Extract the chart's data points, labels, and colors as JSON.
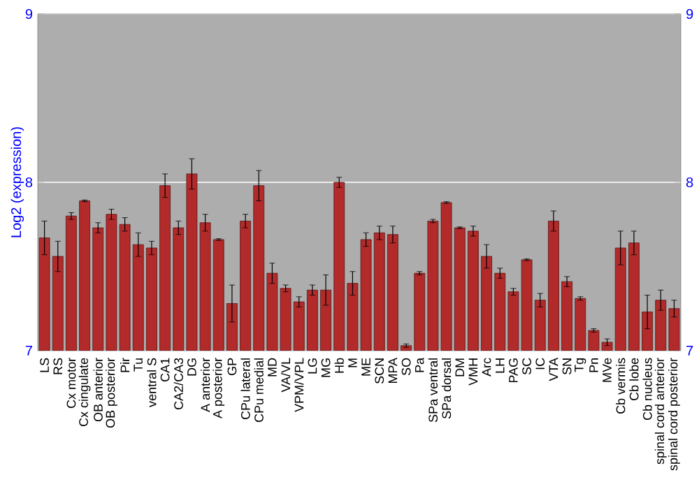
{
  "chart_data": {
    "type": "bar",
    "ylabel": "Log2 (expression)",
    "categories": [
      "LS",
      "RS",
      "Cx motor",
      "Cx cingulate",
      "OB anterior",
      "OB posterior",
      "Pir",
      "Tu",
      "ventral S",
      "CA1",
      "CA2/CA3",
      "DG",
      "A anterior",
      "A posterior",
      "GP",
      "CPu lateral",
      "CPu medial",
      "MD",
      "VA/VL",
      "VPM/VPL",
      "LG",
      "MG",
      "Hb",
      "M",
      "ME",
      "SCN",
      "MPA",
      "SO",
      "Pa",
      "SPa ventral",
      "SPa dorsal",
      "DM",
      "VMH",
      "Arc",
      "LH",
      "PAG",
      "SC",
      "IC",
      "VTA",
      "SN",
      "Tg",
      "Pn",
      "MVe",
      "Cb vermis",
      "Cb lobe",
      "Cb nucleus",
      "spinal cord anterior",
      "spinal cord posterior"
    ],
    "values": [
      7.67,
      7.56,
      7.8,
      7.89,
      7.73,
      7.81,
      7.75,
      7.63,
      7.61,
      7.98,
      7.73,
      8.05,
      7.76,
      7.66,
      7.28,
      7.77,
      7.98,
      7.46,
      7.37,
      7.29,
      7.36,
      7.36,
      8.0,
      7.4,
      7.66,
      7.7,
      7.69,
      7.03,
      7.46,
      7.77,
      7.88,
      7.73,
      7.71,
      7.56,
      7.46,
      7.35,
      7.54,
      7.3,
      7.77,
      7.41,
      7.31,
      7.12,
      7.05,
      7.61,
      7.64,
      7.23,
      7.3,
      7.25
    ],
    "errors": [
      0.1,
      0.09,
      0.02,
      0.005,
      0.03,
      0.03,
      0.04,
      0.07,
      0.04,
      0.07,
      0.04,
      0.09,
      0.05,
      0.005,
      0.11,
      0.04,
      0.09,
      0.06,
      0.02,
      0.03,
      0.03,
      0.09,
      0.03,
      0.07,
      0.04,
      0.04,
      0.05,
      0.01,
      0.01,
      0.01,
      0.005,
      0.005,
      0.03,
      0.07,
      0.03,
      0.02,
      0.005,
      0.04,
      0.06,
      0.03,
      0.01,
      0.01,
      0.02,
      0.1,
      0.07,
      0.1,
      0.06,
      0.05
    ],
    "color": "#b22a2a",
    "ylim": [
      7,
      9
    ],
    "yticks": [
      7,
      8,
      9
    ],
    "y2lim": [
      7,
      9
    ],
    "y2ticks": [
      7,
      8,
      9
    ],
    "grid": "y"
  }
}
